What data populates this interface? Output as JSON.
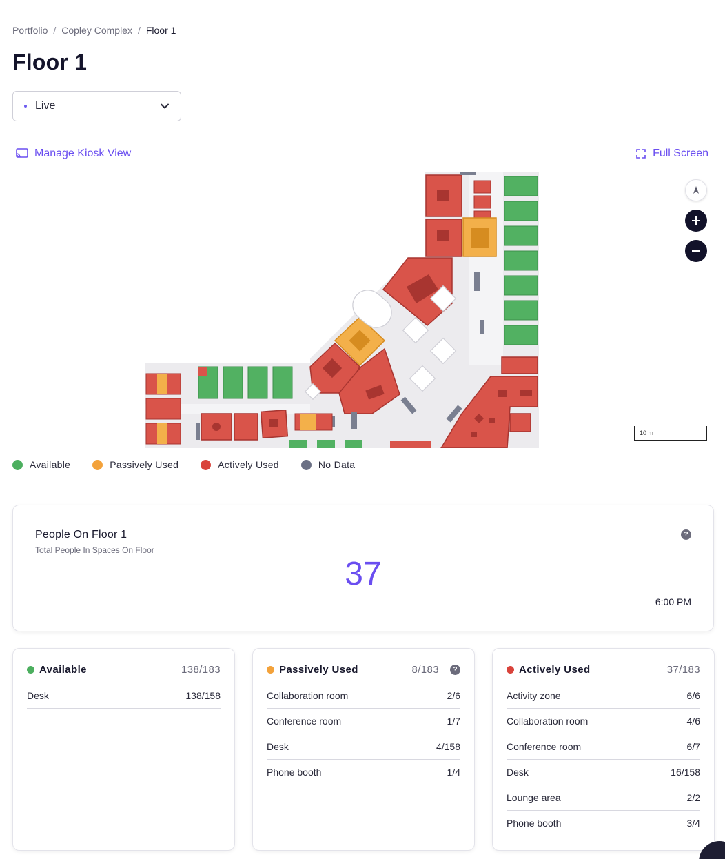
{
  "breadcrumb": {
    "items": [
      "Portfolio",
      "Copley Complex"
    ],
    "current": "Floor 1",
    "separator": "/"
  },
  "page": {
    "title": "Floor 1"
  },
  "mode_select": {
    "value": "Live"
  },
  "links": {
    "kiosk": "Manage Kiosk View",
    "fullscreen": "Full Screen"
  },
  "map": {
    "scale_label": "10 m",
    "controls": [
      "compass-icon",
      "zoom-in-icon",
      "zoom-out-icon"
    ]
  },
  "colors": {
    "available": "#4caf5f",
    "passive": "#f3a23b",
    "active": "#d9433b",
    "nodata": "#6b7085",
    "accent": "#6a4ef0"
  },
  "legend": [
    {
      "label": "Available",
      "color": "#4caf5f"
    },
    {
      "label": "Passively Used",
      "color": "#f3a23b"
    },
    {
      "label": "Actively Used",
      "color": "#d9433b"
    },
    {
      "label": "No Data",
      "color": "#6b7085"
    }
  ],
  "people": {
    "title": "People On Floor 1",
    "subtitle": "Total People In Spaces On Floor",
    "count": "37",
    "time": "6:00 PM",
    "help": "?"
  },
  "cards": [
    {
      "name": "Available",
      "total": "138/183",
      "color": "#4caf5f",
      "rows": [
        {
          "label": "Desk",
          "value": "138/158"
        }
      ]
    },
    {
      "name": "Passively Used",
      "total": "8/183",
      "color": "#f3a23b",
      "help": "?",
      "rows": [
        {
          "label": "Collaboration room",
          "value": "2/6"
        },
        {
          "label": "Conference room",
          "value": "1/7"
        },
        {
          "label": "Desk",
          "value": "4/158"
        },
        {
          "label": "Phone booth",
          "value": "1/4"
        }
      ]
    },
    {
      "name": "Actively Used",
      "total": "37/183",
      "color": "#d9433b",
      "rows": [
        {
          "label": "Activity zone",
          "value": "6/6"
        },
        {
          "label": "Collaboration room",
          "value": "4/6"
        },
        {
          "label": "Conference room",
          "value": "6/7"
        },
        {
          "label": "Desk",
          "value": "16/158"
        },
        {
          "label": "Lounge area",
          "value": "2/2"
        },
        {
          "label": "Phone booth",
          "value": "3/4"
        }
      ]
    }
  ]
}
